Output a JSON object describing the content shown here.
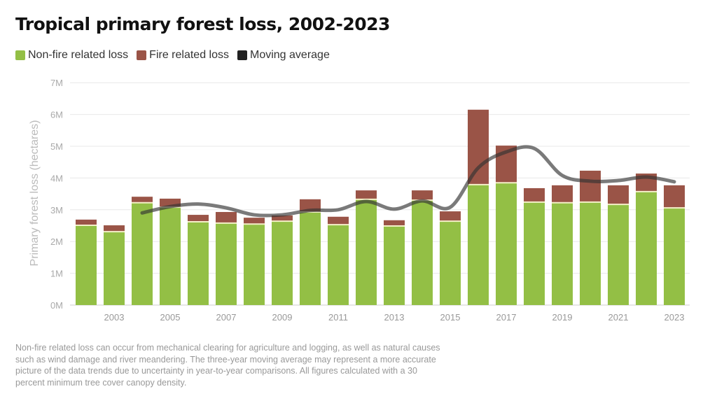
{
  "chart_data": {
    "type": "bar",
    "stacked": true,
    "title": "Tropical primary forest loss, 2002-2023",
    "ylabel": "Primary forest loss (hectares)",
    "xlabel": "",
    "ylim": [
      0,
      7000000
    ],
    "yticks": [
      "0M",
      "1M",
      "2M",
      "3M",
      "4M",
      "5M",
      "6M",
      "7M"
    ],
    "xticks": [
      "2003",
      "2005",
      "2007",
      "2009",
      "2011",
      "2013",
      "2015",
      "2017",
      "2019",
      "2021",
      "2023"
    ],
    "grid": true,
    "legend_position": "top-left",
    "categories": [
      2002,
      2003,
      2004,
      2005,
      2006,
      2007,
      2008,
      2009,
      2010,
      2011,
      2012,
      2013,
      2014,
      2015,
      2016,
      2017,
      2018,
      2019,
      2020,
      2021,
      2022,
      2023
    ],
    "series": [
      {
        "name": "Non-fire related loss",
        "color": "#93bf45",
        "values": [
          2.51,
          2.31,
          3.22,
          3.08,
          2.62,
          2.58,
          2.55,
          2.64,
          2.93,
          2.53,
          3.33,
          2.49,
          3.3,
          2.64,
          3.79,
          3.85,
          3.24,
          3.22,
          3.24,
          3.17,
          3.57,
          3.06
        ]
      },
      {
        "name": "Fire related loss",
        "color": "#9a5447",
        "values": [
          0.18,
          0.2,
          0.19,
          0.27,
          0.22,
          0.35,
          0.2,
          0.18,
          0.4,
          0.25,
          0.28,
          0.18,
          0.31,
          0.31,
          2.36,
          1.17,
          0.44,
          0.55,
          0.99,
          0.6,
          0.57,
          0.71
        ]
      },
      {
        "name": "Moving average",
        "type": "line",
        "color": "#333333",
        "x": [
          2004,
          2005,
          2006,
          2007,
          2008,
          2009,
          2010,
          2011,
          2012,
          2013,
          2014,
          2015,
          2016,
          2017,
          2018,
          2019,
          2020,
          2021,
          2022,
          2023
        ],
        "values": [
          2.9,
          3.1,
          3.18,
          3.06,
          2.84,
          2.84,
          2.98,
          3.0,
          3.26,
          3.02,
          3.28,
          3.08,
          4.32,
          4.82,
          4.93,
          4.08,
          3.9,
          3.92,
          4.03,
          3.88
        ]
      }
    ],
    "units": "million hectares"
  },
  "caption": "Non-fire related loss can occur from mechanical clearing for agriculture and logging, as well as natural causes such as wind damage and river meandering. The three-year moving average may represent a more accurate picture of the data trends due to uncertainty in year-to-year comparisons. All figures calculated with a 30 percent minimum tree cover canopy density."
}
